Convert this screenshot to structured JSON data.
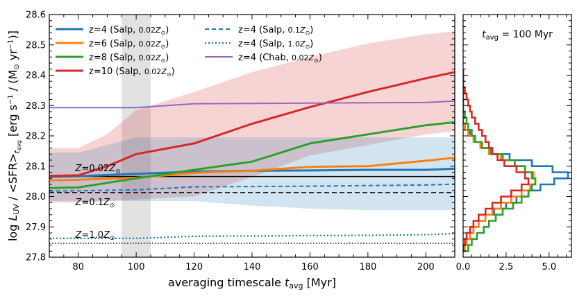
{
  "chart_data": [
    {
      "type": "line",
      "xlabel": "averaging timescale t_avg [Myr]",
      "xlabel_parts": {
        "text": "averaging timescale ",
        "var": "t",
        "sub": "avg",
        "unit": " [Myr]"
      },
      "ylabel": "log L_UV / <SFR>_t_avg [erg s^-1 / (M_sun yr^-1)]",
      "ylabel_parts": {
        "log": "log ",
        "L": "L",
        "Lsub": "UV",
        "slash": " / ",
        "sfr": "<SFR>",
        "tsub": "t",
        "tsubsub": "avg",
        "unit": " [erg s",
        "exp": "−1",
        "unit2": " / (M",
        "sun": "⊙",
        "unit3": " yr",
        "exp2": "−1",
        "unit4": ")]"
      },
      "xlim": [
        70,
        210
      ],
      "ylim": [
        27.8,
        28.6
      ],
      "x_ticks": [
        80,
        100,
        120,
        140,
        160,
        180,
        200
      ],
      "y_ticks": [
        27.8,
        27.9,
        28.0,
        28.1,
        28.2,
        28.3,
        28.4,
        28.5,
        28.6
      ],
      "x_tick_labels": [
        "80",
        "100",
        "120",
        "140",
        "160",
        "180",
        "200"
      ],
      "y_tick_labels": [
        "27.8",
        "27.9",
        "28.0",
        "28.1",
        "28.2",
        "28.3",
        "28.4",
        "28.5",
        "28.6"
      ],
      "shaded_band_x": [
        95,
        105
      ],
      "legend_position": "top",
      "series": [
        {
          "name": "z=4 (Salp, 0.02Z⊙)",
          "label": {
            "a": "z=4 (Salp, ",
            "b": "0.02",
            "c": "Z",
            "d": "⊙",
            "e": ")"
          },
          "color": "#1f77b4",
          "style": "solid",
          "x": [
            70,
            80,
            100,
            120,
            140,
            160,
            180,
            200,
            210
          ],
          "y": [
            28.065,
            28.067,
            28.075,
            28.082,
            28.085,
            28.086,
            28.088,
            28.088,
            28.092
          ]
        },
        {
          "name": "z=6 (Salp, 0.02Z⊙)",
          "label": {
            "a": "z=6 (Salp, ",
            "b": "0.02",
            "c": "Z",
            "d": "⊙",
            "e": ")"
          },
          "color": "#ff7f0e",
          "style": "solid",
          "x": [
            70,
            80,
            100,
            120,
            140,
            160,
            180,
            200,
            210
          ],
          "y": [
            28.053,
            28.055,
            28.062,
            28.078,
            28.085,
            28.098,
            28.1,
            28.118,
            28.128
          ]
        },
        {
          "name": "z=8 (Salp, 0.02Z⊙)",
          "label": {
            "a": "z=8 (Salp, ",
            "b": "0.02",
            "c": "Z",
            "d": "⊙",
            "e": ")"
          },
          "color": "#2ca02c",
          "style": "solid",
          "x": [
            70,
            80,
            100,
            120,
            140,
            160,
            180,
            200,
            210
          ],
          "y": [
            28.028,
            28.03,
            28.06,
            28.088,
            28.115,
            28.175,
            28.205,
            28.235,
            28.245
          ]
        },
        {
          "name": "z=10 (Salp, 0.02Z⊙)",
          "label": {
            "a": "z=10 (Salp, ",
            "b": "0.02",
            "c": "Z",
            "d": "⊙",
            "e": ")"
          },
          "color": "#d62728",
          "style": "solid",
          "x": [
            70,
            80,
            90,
            100,
            120,
            140,
            160,
            180,
            200,
            210
          ],
          "y": [
            28.068,
            28.07,
            28.1,
            28.14,
            28.175,
            28.24,
            28.295,
            28.345,
            28.39,
            28.41
          ]
        },
        {
          "name": "z=4 (Salp, 0.1Z⊙)",
          "label": {
            "a": "z=4 (Salp, ",
            "b": "0.1",
            "c": "Z",
            "d": "⊙",
            "e": ")"
          },
          "color": "#1f77b4",
          "style": "dashed",
          "x": [
            70,
            80,
            100,
            120,
            140,
            160,
            180,
            200,
            210
          ],
          "y": [
            28.018,
            28.019,
            28.022,
            28.032,
            28.033,
            28.034,
            28.036,
            28.038,
            28.041
          ]
        },
        {
          "name": "z=4 (Salp, 1.0Z⊙)",
          "label": {
            "a": "z=4 (Salp, ",
            "b": "1.0",
            "c": "Z",
            "d": "⊙",
            "e": ")"
          },
          "color": "#1f77b4",
          "style": "dotted",
          "x": [
            70,
            80,
            100,
            120,
            140,
            160,
            180,
            200,
            210
          ],
          "y": [
            27.862,
            27.862,
            27.862,
            27.869,
            27.87,
            27.871,
            27.872,
            27.874,
            27.878
          ]
        },
        {
          "name": "z=4 (Chab, 0.02Z⊙)",
          "label": {
            "a": "z=4 (Chab, ",
            "b": "0.02",
            "c": "Z",
            "d": "⊙",
            "e": ")"
          },
          "color": "#9467bd",
          "style": "solid",
          "x": [
            70,
            80,
            100,
            120,
            140,
            160,
            180,
            200,
            210
          ],
          "y": [
            28.293,
            28.293,
            28.293,
            28.306,
            28.307,
            28.308,
            28.309,
            28.31,
            28.315
          ]
        }
      ],
      "bands": [
        {
          "series": "z=10 (Salp, 0.02Z⊙)",
          "color": "#d62728",
          "opacity": 0.2,
          "x": [
            70,
            80,
            90,
            100,
            120,
            140,
            160,
            180,
            200,
            210
          ],
          "upper": [
            28.16,
            28.16,
            28.205,
            28.285,
            28.345,
            28.41,
            28.46,
            28.505,
            28.535,
            28.545
          ],
          "lower": [
            27.98,
            27.98,
            27.985,
            27.99,
            28.0,
            28.065,
            28.135,
            28.17,
            28.205,
            28.215
          ]
        },
        {
          "series": "z=4 (Salp, 0.02Z⊙)",
          "color": "#1f77b4",
          "opacity": 0.2,
          "x": [
            70,
            80,
            100,
            120,
            140,
            160,
            180,
            200,
            210
          ],
          "upper": [
            28.145,
            28.145,
            28.195,
            28.195,
            28.195,
            28.195,
            28.195,
            28.195,
            28.195
          ],
          "lower": [
            27.985,
            27.985,
            27.985,
            27.985,
            27.97,
            27.96,
            27.955,
            27.955,
            27.955
          ]
        }
      ],
      "reference_lines": [
        {
          "label": {
            "a": "Z",
            "b": "=0.02",
            "c": "Z",
            "d": "⊙"
          },
          "y": 28.066,
          "style": "solid",
          "label_x": 79,
          "label_y": 28.095
        },
        {
          "label": {
            "a": "Z",
            "b": "=0.1",
            "c": "Z",
            "d": "⊙"
          },
          "y": 28.013,
          "style": "dashed",
          "label_x": 79,
          "label_y": 27.983
        },
        {
          "label": {
            "a": "Z",
            "b": "=1.0",
            "c": "Z",
            "d": "⊙"
          },
          "y": 27.846,
          "style": "dotted",
          "label_x": 79,
          "label_y": 27.875
        }
      ]
    },
    {
      "type": "histogram",
      "annotation": {
        "t": "t",
        "sub": "avg",
        "rest": " = 100 Myr"
      },
      "xlim": [
        0,
        6.3
      ],
      "ylim": [
        27.8,
        28.6
      ],
      "x_ticks": [
        0,
        2.5,
        5.0
      ],
      "x_tick_labels": [
        "0.0",
        "2.5",
        "5.0"
      ],
      "bin_edges": [
        27.82,
        27.84,
        27.86,
        27.88,
        27.9,
        27.92,
        27.94,
        27.96,
        27.98,
        28.0,
        28.02,
        28.04,
        28.06,
        28.08,
        28.1,
        28.12,
        28.14,
        28.16,
        28.18,
        28.2,
        28.22,
        28.24,
        28.26,
        28.28,
        28.3,
        28.32,
        28.34,
        28.36,
        28.38,
        28.4,
        28.42
      ],
      "series": [
        {
          "name": "z=4",
          "color": "#1f77b4",
          "counts": [
            0.05,
            0.2,
            0.4,
            0.6,
            0.9,
            1.3,
            1.8,
            2.5,
            3.1,
            3.8,
            4.5,
            5.3,
            6.1,
            5.2,
            4.0,
            2.7,
            1.7,
            1.1,
            0.7,
            0.4,
            0.1,
            0.0,
            0.0,
            0.0,
            0.0,
            0.0,
            0.0,
            0.0,
            0.0,
            0.0
          ]
        },
        {
          "name": "z=6",
          "color": "#ff7f0e",
          "counts": [
            0.1,
            0.2,
            0.4,
            0.6,
            0.9,
            1.3,
            1.7,
            2.2,
            2.8,
            3.4,
            3.9,
            4.2,
            4.1,
            3.6,
            3.0,
            2.2,
            1.5,
            1.0,
            0.6,
            0.3,
            0.1,
            0.0,
            0.0,
            0.0,
            0.0,
            0.0,
            0.0,
            0.0,
            0.0,
            0.0
          ]
        },
        {
          "name": "z=8",
          "color": "#2ca02c",
          "counts": [
            0.3,
            0.5,
            0.8,
            1.2,
            1.5,
            1.9,
            2.3,
            2.9,
            3.4,
            3.8,
            4.0,
            4.2,
            4.0,
            3.6,
            3.0,
            2.3,
            1.6,
            1.1,
            0.7,
            0.5,
            0.3,
            0.2,
            0.1,
            0.0,
            0.0,
            0.0,
            0.0,
            0.0,
            0.0,
            0.0
          ]
        },
        {
          "name": "z=10",
          "color": "#d62728",
          "counts": [
            0.0,
            0.1,
            0.2,
            0.4,
            0.6,
            0.9,
            1.3,
            1.7,
            2.2,
            2.8,
            3.4,
            3.8,
            3.6,
            3.1,
            2.4,
            2.0,
            1.7,
            1.5,
            1.3,
            1.1,
            0.9,
            0.7,
            0.5,
            0.4,
            0.3,
            0.2,
            0.1,
            0.0,
            0.0,
            0.0
          ]
        }
      ]
    }
  ]
}
